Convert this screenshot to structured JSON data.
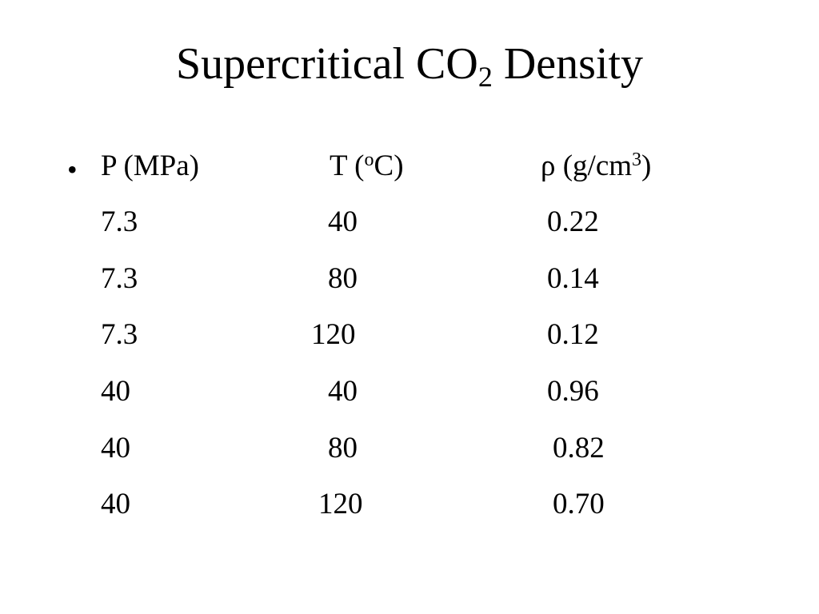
{
  "slide": {
    "title": {
      "main": "Supercritical CO",
      "subscript": "2",
      "suffix": " Density"
    },
    "bullet_symbol": "•",
    "table": {
      "headers": {
        "pressure": "P (MPa)",
        "temperature_prefix": "T (",
        "temperature_sup": "o",
        "temperature_suffix": "C)",
        "density_prefix": "ρ (g/cm",
        "density_sup": "3",
        "density_suffix": ")"
      },
      "rows": [
        {
          "p": "7.3",
          "t": "40",
          "rho": "0.22"
        },
        {
          "p": "7.3",
          "t": "80",
          "rho": "0.14"
        },
        {
          "p": "7.3",
          "t": "120",
          "rho": "0.12"
        },
        {
          "p": "40",
          "t": "40",
          "rho": "0.96"
        },
        {
          "p": "40",
          "t": "80",
          "rho": "0.82"
        },
        {
          "p": "40",
          "t": "120",
          "rho": "0.70"
        }
      ]
    }
  }
}
